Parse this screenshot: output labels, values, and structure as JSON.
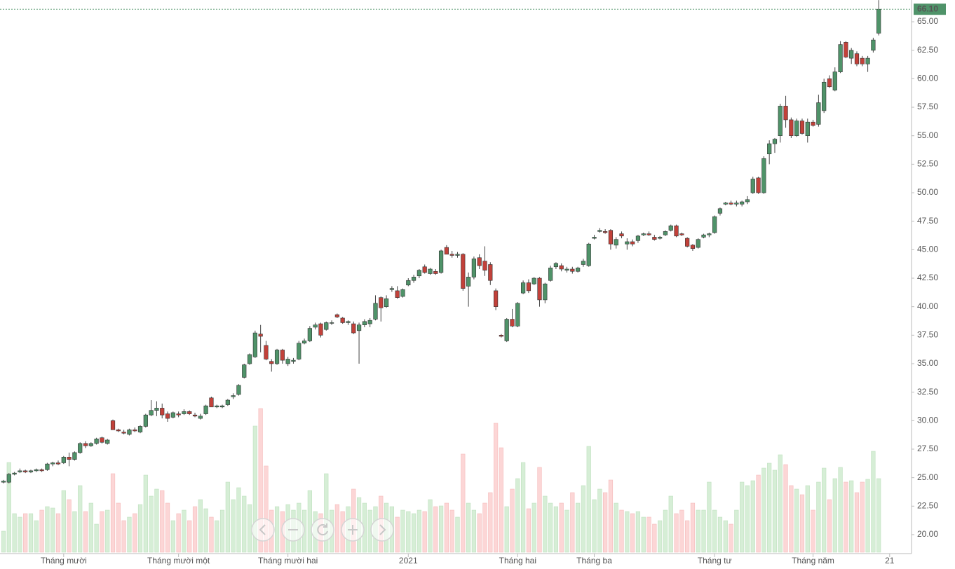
{
  "chart_data": {
    "type": "candlestick",
    "ohlc": [
      [
        24.6,
        24.8,
        24.5,
        24.7
      ],
      [
        24.6,
        25.4,
        24.5,
        25.3
      ],
      [
        25.3,
        25.5,
        25.2,
        25.4
      ],
      [
        25.5,
        25.8,
        25.4,
        25.6
      ],
      [
        25.6,
        25.7,
        25.4,
        25.5
      ],
      [
        25.5,
        25.7,
        25.4,
        25.6
      ],
      [
        25.6,
        25.8,
        25.5,
        25.7
      ],
      [
        25.7,
        25.8,
        25.5,
        25.6
      ],
      [
        25.7,
        26.3,
        25.6,
        26.2
      ],
      [
        26.2,
        26.4,
        26.0,
        26.3
      ],
      [
        26.3,
        26.5,
        26.1,
        26.2
      ],
      [
        26.3,
        26.9,
        26.2,
        26.8
      ],
      [
        26.8,
        27.2,
        26.0,
        26.6
      ],
      [
        26.6,
        27.3,
        26.5,
        27.2
      ],
      [
        27.2,
        28.1,
        27.1,
        28.0
      ],
      [
        28.0,
        28.2,
        27.6,
        27.8
      ],
      [
        27.8,
        28.1,
        27.7,
        28.0
      ],
      [
        28.0,
        28.5,
        27.9,
        28.4
      ],
      [
        28.5,
        28.6,
        28.0,
        28.1
      ],
      [
        28.0,
        28.4,
        27.9,
        28.3
      ],
      [
        30.0,
        30.1,
        29.2,
        29.2
      ],
      [
        29.2,
        29.3,
        29.0,
        29.1
      ],
      [
        29.0,
        29.2,
        28.8,
        28.9
      ],
      [
        28.8,
        29.3,
        28.7,
        29.2
      ],
      [
        29.2,
        29.4,
        29.0,
        29.1
      ],
      [
        29.0,
        29.6,
        28.9,
        29.5
      ],
      [
        29.5,
        30.6,
        29.4,
        30.5
      ],
      [
        30.5,
        31.8,
        30.4,
        30.9
      ],
      [
        30.9,
        31.7,
        30.4,
        31.1
      ],
      [
        31.1,
        31.5,
        30.2,
        30.5
      ],
      [
        30.6,
        30.8,
        29.9,
        30.2
      ],
      [
        30.3,
        30.8,
        30.2,
        30.7
      ],
      [
        30.6,
        30.8,
        30.3,
        30.5
      ],
      [
        30.6,
        31.0,
        30.5,
        30.8
      ],
      [
        30.8,
        30.9,
        30.5,
        30.6
      ],
      [
        30.5,
        30.7,
        30.3,
        30.4
      ],
      [
        30.2,
        30.6,
        30.1,
        30.4
      ],
      [
        30.6,
        31.4,
        30.5,
        31.3
      ],
      [
        32.0,
        32.1,
        31.2,
        31.2
      ],
      [
        31.2,
        31.4,
        31.1,
        31.3
      ],
      [
        31.2,
        31.4,
        31.1,
        31.3
      ],
      [
        31.4,
        31.9,
        31.3,
        31.8
      ],
      [
        32.1,
        32.4,
        31.9,
        32.2
      ],
      [
        32.3,
        33.2,
        32.2,
        33.1
      ],
      [
        33.8,
        35.0,
        33.7,
        34.9
      ],
      [
        35.0,
        35.9,
        34.9,
        35.8
      ],
      [
        35.6,
        37.9,
        35.5,
        37.7
      ],
      [
        37.6,
        38.4,
        36.0,
        37.4
      ],
      [
        36.6,
        37.0,
        35.3,
        35.4
      ],
      [
        35.2,
        35.4,
        34.3,
        35.0
      ],
      [
        35.0,
        36.3,
        34.9,
        36.2
      ],
      [
        36.2,
        36.3,
        35.0,
        35.3
      ],
      [
        35.0,
        35.6,
        34.8,
        35.4
      ],
      [
        35.2,
        35.5,
        35.0,
        35.3
      ],
      [
        35.4,
        37.0,
        35.3,
        36.8
      ],
      [
        36.8,
        37.2,
        36.7,
        37.0
      ],
      [
        37.0,
        38.3,
        36.9,
        38.1
      ],
      [
        38.2,
        38.6,
        38.0,
        38.4
      ],
      [
        38.5,
        38.6,
        37.3,
        37.5
      ],
      [
        38.0,
        38.7,
        37.9,
        38.6
      ],
      [
        38.6,
        38.8,
        38.4,
        38.6
      ],
      [
        39.3,
        39.4,
        39.0,
        39.1
      ],
      [
        39.0,
        39.1,
        38.5,
        38.6
      ],
      [
        38.6,
        38.8,
        38.4,
        38.7
      ],
      [
        38.5,
        38.7,
        37.6,
        37.7
      ],
      [
        37.9,
        38.6,
        35.0,
        38.4
      ],
      [
        38.4,
        38.9,
        38.2,
        38.7
      ],
      [
        38.5,
        39.0,
        38.2,
        38.8
      ],
      [
        38.9,
        41.0,
        38.8,
        40.3
      ],
      [
        40.8,
        40.9,
        38.7,
        39.9
      ],
      [
        40.0,
        41.0,
        39.9,
        40.7
      ],
      [
        41.5,
        41.8,
        41.3,
        41.6
      ],
      [
        41.4,
        41.8,
        40.7,
        40.8
      ],
      [
        40.9,
        41.6,
        40.8,
        41.5
      ],
      [
        41.9,
        42.5,
        41.8,
        42.3
      ],
      [
        42.3,
        42.8,
        42.1,
        42.6
      ],
      [
        42.7,
        43.3,
        42.5,
        43.2
      ],
      [
        43.5,
        43.7,
        42.9,
        43.0
      ],
      [
        42.9,
        43.4,
        42.8,
        43.3
      ],
      [
        43.1,
        43.3,
        42.8,
        42.9
      ],
      [
        43.0,
        45.0,
        42.9,
        44.9
      ],
      [
        45.2,
        45.4,
        44.6,
        44.6
      ],
      [
        44.6,
        44.9,
        44.3,
        44.5
      ],
      [
        44.5,
        44.8,
        44.3,
        44.6
      ],
      [
        44.6,
        44.7,
        41.4,
        41.6
      ],
      [
        41.8,
        43.0,
        40.0,
        42.6
      ],
      [
        42.6,
        44.4,
        42.4,
        44.2
      ],
      [
        44.3,
        44.6,
        43.3,
        43.6
      ],
      [
        44.0,
        45.3,
        42.7,
        43.2
      ],
      [
        43.7,
        43.9,
        41.9,
        42.3
      ],
      [
        41.4,
        41.6,
        39.7,
        40.0
      ],
      [
        37.5,
        37.6,
        37.3,
        37.4
      ],
      [
        37.0,
        39.0,
        36.9,
        38.9
      ],
      [
        38.9,
        39.8,
        38.2,
        38.3
      ],
      [
        38.3,
        40.4,
        38.2,
        40.3
      ],
      [
        41.2,
        42.3,
        41.1,
        42.1
      ],
      [
        42.1,
        42.4,
        41.2,
        41.4
      ],
      [
        42.0,
        42.6,
        41.9,
        42.5
      ],
      [
        42.5,
        42.6,
        40.0,
        40.6
      ],
      [
        40.6,
        42.1,
        40.3,
        42.0
      ],
      [
        42.3,
        43.6,
        42.2,
        43.4
      ],
      [
        43.5,
        43.9,
        43.3,
        43.8
      ],
      [
        43.6,
        43.8,
        43.1,
        43.3
      ],
      [
        43.2,
        43.5,
        43.0,
        43.3
      ],
      [
        43.3,
        43.5,
        42.9,
        43.1
      ],
      [
        43.1,
        43.5,
        43.0,
        43.4
      ],
      [
        43.7,
        44.2,
        43.5,
        44.0
      ],
      [
        43.6,
        45.6,
        43.5,
        45.5
      ],
      [
        46.0,
        46.3,
        45.9,
        46.1
      ],
      [
        46.6,
        46.9,
        46.5,
        46.7
      ],
      [
        46.6,
        46.8,
        46.4,
        46.5
      ],
      [
        46.7,
        46.8,
        45.0,
        45.5
      ],
      [
        45.4,
        46.1,
        45.1,
        45.9
      ],
      [
        46.4,
        46.6,
        46.0,
        46.2
      ],
      [
        45.5,
        46.0,
        45.0,
        45.7
      ],
      [
        45.7,
        45.9,
        45.3,
        45.5
      ],
      [
        45.8,
        46.3,
        45.6,
        46.2
      ],
      [
        46.3,
        46.5,
        46.2,
        46.4
      ],
      [
        46.4,
        46.6,
        46.2,
        46.3
      ],
      [
        46.1,
        46.3,
        45.8,
        45.9
      ],
      [
        46.0,
        46.2,
        45.9,
        46.1
      ],
      [
        46.3,
        46.7,
        46.2,
        46.6
      ],
      [
        46.7,
        47.2,
        46.6,
        47.1
      ],
      [
        47.1,
        47.2,
        46.1,
        46.2
      ],
      [
        46.4,
        46.5,
        46.2,
        46.3
      ],
      [
        46.0,
        46.1,
        45.2,
        45.3
      ],
      [
        45.4,
        45.5,
        44.9,
        45.1
      ],
      [
        45.2,
        46.0,
        45.1,
        45.9
      ],
      [
        46.1,
        46.4,
        46.0,
        46.3
      ],
      [
        46.3,
        46.5,
        46.1,
        46.4
      ],
      [
        46.5,
        48.0,
        46.4,
        47.9
      ],
      [
        48.2,
        48.7,
        48.0,
        48.6
      ],
      [
        49.0,
        49.2,
        48.9,
        49.1
      ],
      [
        49.1,
        49.3,
        48.9,
        49.0
      ],
      [
        49.0,
        49.3,
        48.8,
        49.1
      ],
      [
        49.0,
        49.3,
        48.8,
        49.2
      ],
      [
        49.2,
        49.7,
        49.0,
        49.4
      ],
      [
        50.0,
        51.4,
        49.9,
        51.2
      ],
      [
        51.3,
        51.4,
        49.9,
        50.0
      ],
      [
        50.0,
        53.2,
        49.9,
        53.0
      ],
      [
        53.4,
        54.6,
        52.5,
        54.3
      ],
      [
        54.3,
        54.8,
        53.5,
        54.7
      ],
      [
        55.0,
        57.8,
        54.4,
        57.6
      ],
      [
        57.6,
        58.5,
        55.7,
        56.4
      ],
      [
        56.4,
        56.6,
        54.8,
        55.0
      ],
      [
        55.0,
        56.5,
        54.9,
        56.3
      ],
      [
        56.3,
        56.5,
        55.1,
        55.2
      ],
      [
        55.0,
        56.5,
        54.4,
        56.2
      ],
      [
        56.2,
        56.4,
        55.8,
        55.9
      ],
      [
        56.0,
        58.6,
        55.8,
        57.9
      ],
      [
        57.2,
        60.0,
        57.0,
        59.7
      ],
      [
        60.0,
        60.3,
        59.2,
        59.3
      ],
      [
        59.0,
        61.0,
        58.9,
        60.6
      ],
      [
        60.6,
        63.3,
        60.5,
        63.0
      ],
      [
        63.2,
        63.3,
        61.8,
        61.9
      ],
      [
        61.8,
        62.7,
        61.3,
        62.5
      ],
      [
        62.2,
        62.4,
        61.1,
        61.3
      ],
      [
        61.8,
        62.0,
        61.1,
        61.3
      ],
      [
        61.3,
        62.0,
        60.6,
        61.8
      ],
      [
        62.5,
        63.6,
        62.3,
        63.4
      ],
      [
        64.0,
        66.9,
        63.8,
        66.1
      ]
    ],
    "volume": [
      30,
      128,
      55,
      50,
      55,
      55,
      45,
      60,
      65,
      63,
      55,
      88,
      75,
      58,
      95,
      58,
      70,
      40,
      58,
      60,
      112,
      70,
      45,
      50,
      55,
      68,
      110,
      80,
      90,
      88,
      70,
      45,
      55,
      60,
      45,
      65,
      75,
      62,
      50,
      45,
      60,
      100,
      75,
      92,
      80,
      68,
      180,
      205,
      123,
      60,
      65,
      58,
      68,
      60,
      70,
      60,
      88,
      58,
      55,
      112,
      60,
      68,
      58,
      65,
      90,
      78,
      70,
      60,
      65,
      80,
      70,
      65,
      50,
      60,
      58,
      55,
      60,
      58,
      75,
      65,
      66,
      70,
      60,
      50,
      140,
      70,
      60,
      55,
      70,
      85,
      184,
      149,
      65,
      90,
      105,
      128,
      62,
      70,
      121,
      80,
      70,
      65,
      70,
      60,
      85,
      70,
      95,
      151,
      75,
      90,
      85,
      103,
      70,
      60,
      58,
      55,
      58,
      50,
      50,
      40,
      45,
      60,
      80,
      55,
      60,
      45,
      70,
      60,
      60,
      100,
      60,
      50,
      45,
      40,
      60,
      100,
      95,
      102,
      110,
      120,
      127,
      117,
      139,
      125,
      95,
      90,
      82,
      95,
      60,
      100,
      120,
      75,
      105,
      121,
      100,
      102,
      85,
      100,
      104,
      144,
      105
    ],
    "up_color": "#4f9369",
    "down_color": "#c2413a",
    "volume_up_color": "#d6eed6",
    "volume_down_color": "#fcd6d6",
    "ylim": [
      18.46,
      66.91
    ],
    "yticks": [
      {
        "value": 20,
        "label": "20.00"
      },
      {
        "value": 22.5,
        "label": "22.50"
      },
      {
        "value": 25,
        "label": "25.00"
      },
      {
        "value": 27.5,
        "label": "27.50"
      },
      {
        "value": 30,
        "label": "30.00"
      },
      {
        "value": 32.5,
        "label": "32.50"
      },
      {
        "value": 35,
        "label": "35.00"
      },
      {
        "value": 37.5,
        "label": "37.50"
      },
      {
        "value": 40,
        "label": "40.00"
      },
      {
        "value": 42.5,
        "label": "42.50"
      },
      {
        "value": 45,
        "label": "45.00"
      },
      {
        "value": 47.5,
        "label": "47.50"
      },
      {
        "value": 50,
        "label": "50.00"
      },
      {
        "value": 52.5,
        "label": "52.50"
      },
      {
        "value": 55,
        "label": "55.00"
      },
      {
        "value": 57.5,
        "label": "57.50"
      },
      {
        "value": 60,
        "label": "60.00"
      },
      {
        "value": 62.5,
        "label": "62.50"
      },
      {
        "value": 65,
        "label": "65.00"
      }
    ],
    "xlim": [
      -0.64,
      166
    ],
    "xticks": [
      {
        "value": 11,
        "label": "Tháng mười"
      },
      {
        "value": 32,
        "label": "Tháng mười một"
      },
      {
        "value": 52,
        "label": "Tháng mười hai"
      },
      {
        "value": 74,
        "label": "2021"
      },
      {
        "value": 94,
        "label": "Tháng hai"
      },
      {
        "value": 108,
        "label": "Tháng ba"
      },
      {
        "value": 130,
        "label": "Tháng tư"
      },
      {
        "value": 148,
        "label": "Tháng năm"
      },
      {
        "value": 162,
        "label": "21"
      }
    ],
    "last_price": {
      "value": 66.1,
      "label": "66.10"
    }
  }
}
